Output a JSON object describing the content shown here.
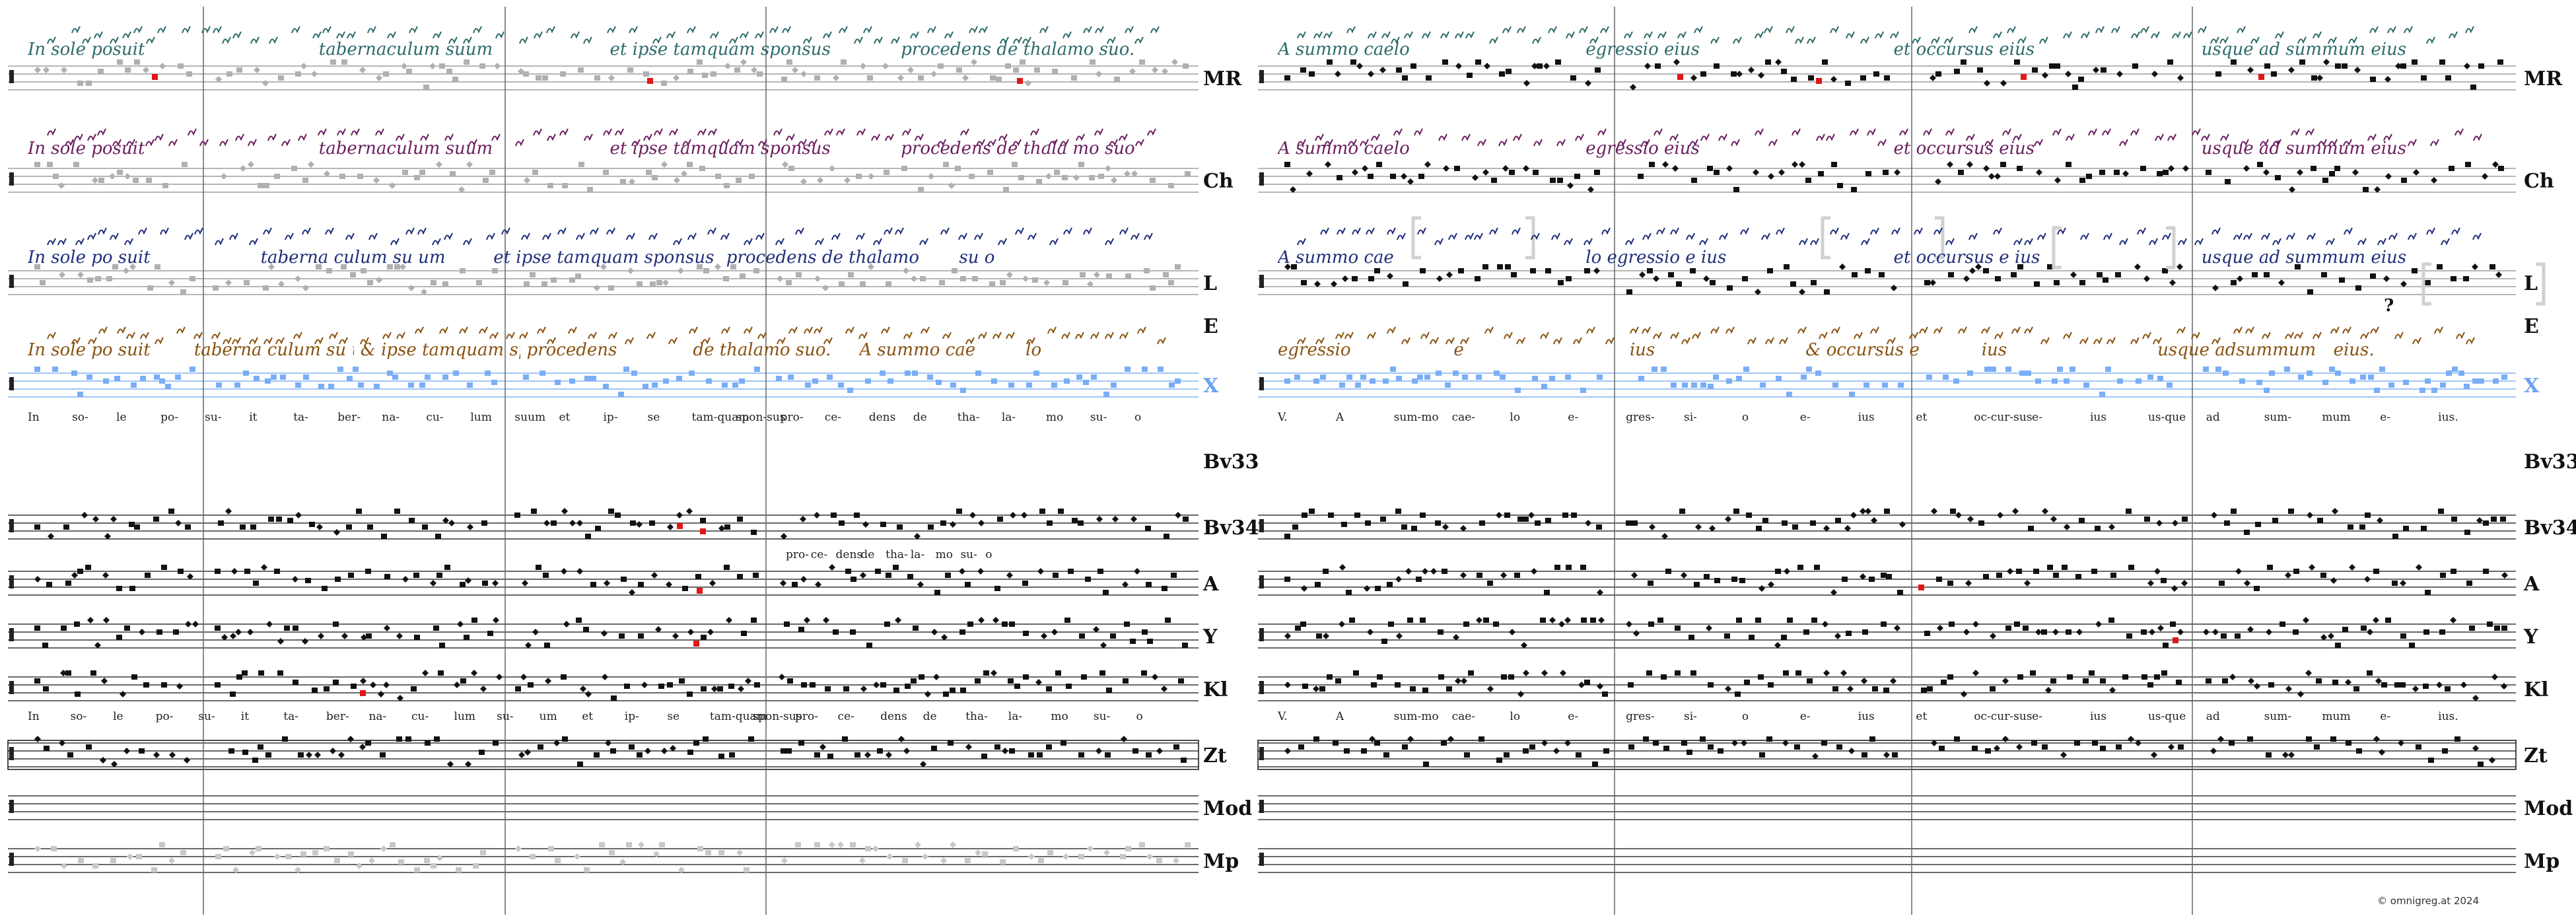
{
  "labels": [
    "MR",
    "Ch",
    "L",
    "E",
    "X",
    "Bv33",
    "Bv34",
    "A",
    "Y",
    "Kl",
    "Zt",
    "Mod",
    "Mp"
  ],
  "colors": {
    "mr": "#2e6b6b",
    "ch": "#6a1f5e",
    "l": "#1f2f7a",
    "e": "#8a5210",
    "x": "#6aa3f0",
    "red": "#e01818",
    "green": "#4a8a5a",
    "grey": "#9a9a9a",
    "ink": "#111111"
  },
  "neume_rows": {
    "mr": [
      "In sole posuit",
      "tabernaculum suum",
      "et ipse tamquam sponsus",
      "procedens de thalamo suo.",
      "A summo caelo",
      "egressio eius",
      "et occursus eius",
      "usque ad summum eius"
    ],
    "ch": [
      "In sole posuit",
      "tabernaculum suum",
      "et ipse tamquam sponsus",
      "procedens de thala   mo suo",
      "A summo caelo",
      "egressio eius",
      "et occursus eius",
      "usque ad summum eius"
    ],
    "l": [
      "In sole po suit",
      "taberna culum su um",
      "et ipse   tamquam sponsus",
      "procedens de thalamo",
      "su o",
      "A summo cae",
      "lo egressio e      ius",
      "et occursus e      ius",
      "usque ad summum eius"
    ],
    "e": [
      "In sole po suit",
      "taberna culum su    um",
      "& ipse tamquam spon sus",
      "procedens",
      "de thalamo suo.",
      "A summo cae",
      "lo",
      "egressio",
      "e",
      "ius",
      "& occursus e",
      "ius",
      "usque adsummum",
      "eius."
    ]
  },
  "lyrics_top": {
    "left": [
      "In",
      "so-",
      "le",
      "po-",
      "su-",
      "it",
      "ta-",
      "ber-",
      "na-",
      "cu-",
      "lum",
      "suum",
      "et",
      "ip-",
      "se",
      "tam-quam",
      "spon-sus",
      "pro-",
      "ce-",
      "dens",
      "de",
      "tha-",
      "la-",
      "mo",
      "su-",
      "o"
    ],
    "right": [
      "V.",
      "A",
      "sum-mo",
      "cae-",
      "lo",
      "e-",
      "gres-",
      "si-",
      "o",
      "e-",
      "ius",
      "et",
      "oc-cur-sus",
      "e-",
      "ius",
      "us-que",
      "ad",
      "sum-",
      "mum",
      "e-",
      "ius."
    ]
  },
  "lyrics_bv34": [
    "pro-",
    "ce-",
    "dens",
    "de",
    "tha-",
    "la-",
    "mo",
    "su-",
    "o"
  ],
  "lyrics_mid": {
    "left": [
      "In",
      "so-",
      "le",
      "po-",
      "su-",
      "it",
      "ta-",
      "ber-",
      "na-",
      "cu-",
      "lum",
      "su-",
      "um",
      "et",
      "ip-",
      "se",
      "tam-quam",
      "spon-sus",
      "pro-",
      "ce-",
      "dens",
      "de",
      "tha-",
      "la-",
      "mo",
      "su-",
      "o"
    ],
    "right": [
      "V.",
      "A",
      "sum-mo",
      "cae-",
      "lo",
      "e-",
      "gres-",
      "si-",
      "o",
      "e-",
      "ius",
      "et",
      "oc-cur-sus",
      "e-",
      "ius",
      "us-que",
      "ad",
      "sum-",
      "mum",
      "e-",
      "ius."
    ]
  },
  "question_mark": "?",
  "copyright": "© omnigreg.at   2024"
}
